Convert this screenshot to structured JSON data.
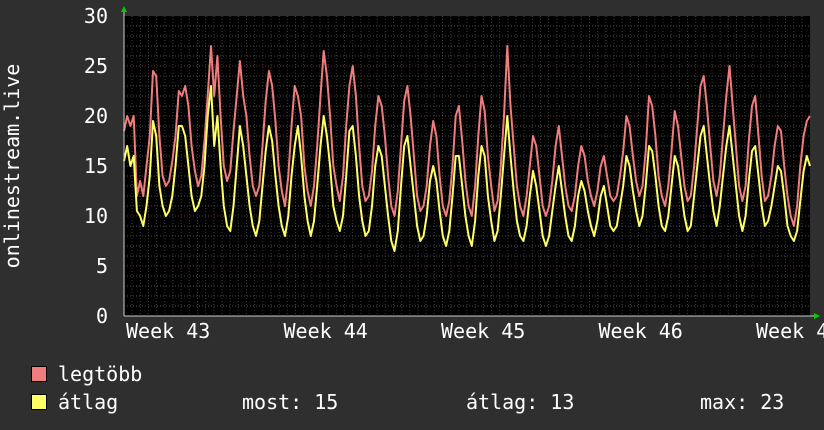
{
  "chart_data": {
    "type": "line",
    "ylabel": "onlinestream.live",
    "ylim": [
      0,
      30
    ],
    "yticks": [
      0,
      5,
      10,
      15,
      20,
      25,
      30
    ],
    "x_tick_labels": [
      "Week 43",
      "Week 44",
      "Week 45",
      "Week 46",
      "Week 4"
    ],
    "grid": true,
    "series": [
      {
        "name": "legtöbb",
        "color": "#f07c7c",
        "values": [
          18.5,
          20.0,
          19.0,
          20.0,
          12.0,
          13.5,
          12.0,
          15.0,
          18.0,
          24.5,
          24.0,
          18.0,
          14.0,
          13.0,
          13.5,
          15.5,
          18.0,
          22.5,
          22.0,
          23.0,
          21.0,
          17.0,
          14.5,
          13.0,
          14.0,
          17.5,
          22.0,
          27.0,
          22.0,
          26.0,
          20.0,
          15.0,
          13.5,
          14.5,
          18.5,
          22.0,
          25.5,
          22.0,
          20.0,
          16.0,
          13.0,
          12.0,
          13.0,
          17.0,
          21.5,
          24.5,
          23.0,
          19.5,
          15.0,
          12.5,
          11.0,
          14.0,
          19.0,
          23.0,
          22.0,
          20.0,
          15.0,
          12.5,
          11.0,
          13.0,
          17.0,
          22.0,
          26.5,
          24.0,
          20.0,
          15.0,
          13.0,
          11.5,
          14.0,
          19.0,
          23.0,
          25.0,
          22.0,
          17.0,
          13.0,
          11.5,
          12.0,
          14.5,
          19.0,
          22.0,
          21.0,
          18.0,
          14.0,
          11.0,
          10.0,
          12.5,
          17.0,
          21.5,
          23.0,
          20.0,
          16.0,
          12.0,
          10.5,
          11.0,
          13.0,
          17.0,
          19.5,
          18.0,
          14.0,
          11.0,
          10.0,
          11.5,
          15.0,
          20.0,
          21.0,
          17.5,
          13.5,
          11.0,
          10.0,
          13.0,
          18.0,
          22.0,
          20.5,
          16.0,
          13.0,
          10.5,
          11.5,
          15.0,
          20.0,
          27.0,
          21.0,
          17.0,
          13.0,
          11.0,
          10.0,
          12.0,
          15.0,
          18.0,
          17.0,
          14.0,
          11.0,
          10.0,
          11.0,
          13.5,
          17.0,
          19.0,
          16.0,
          13.0,
          11.0,
          10.5,
          12.0,
          15.0,
          17.0,
          16.0,
          13.5,
          12.0,
          11.0,
          12.5,
          15.0,
          16.0,
          14.0,
          12.0,
          11.5,
          12.0,
          14.0,
          16.5,
          20.0,
          19.0,
          16.0,
          13.5,
          12.0,
          13.0,
          16.5,
          22.0,
          21.0,
          18.0,
          14.0,
          12.0,
          11.0,
          13.0,
          16.5,
          20.5,
          19.0,
          16.0,
          13.0,
          11.5,
          12.0,
          15.0,
          19.0,
          23.0,
          24.0,
          21.0,
          17.0,
          13.5,
          12.0,
          14.0,
          18.0,
          22.0,
          25.0,
          21.0,
          17.0,
          13.0,
          11.5,
          13.0,
          17.5,
          21.0,
          22.0,
          18.0,
          14.0,
          11.5,
          12.0,
          14.0,
          17.0,
          19.0,
          18.5,
          15.0,
          12.0,
          10.0,
          9.0,
          11.0,
          15.0,
          18.0,
          19.5,
          20.0
        ]
      },
      {
        "name": "átlag",
        "color": "#ffff66",
        "values": [
          15.5,
          17.0,
          15.0,
          16.0,
          10.5,
          10.0,
          9.0,
          11.0,
          14.0,
          19.5,
          18.0,
          13.0,
          11.0,
          10.0,
          10.5,
          12.0,
          15.0,
          19.0,
          19.0,
          18.0,
          15.0,
          12.0,
          10.5,
          11.0,
          12.0,
          15.0,
          20.0,
          23.0,
          17.0,
          20.0,
          15.0,
          11.0,
          9.0,
          8.5,
          11.0,
          15.0,
          19.0,
          17.0,
          14.0,
          11.0,
          9.0,
          8.0,
          9.5,
          13.0,
          16.5,
          19.0,
          17.5,
          14.0,
          11.0,
          9.0,
          8.0,
          10.0,
          14.0,
          17.0,
          19.0,
          16.0,
          12.0,
          9.5,
          8.0,
          9.5,
          13.0,
          17.0,
          20.0,
          18.0,
          15.0,
          11.0,
          9.5,
          8.5,
          10.0,
          14.0,
          18.5,
          19.0,
          16.0,
          12.0,
          9.5,
          8.0,
          8.5,
          11.0,
          15.0,
          17.0,
          16.0,
          13.0,
          10.0,
          7.5,
          6.5,
          8.5,
          13.0,
          17.0,
          18.0,
          15.0,
          12.0,
          9.0,
          7.5,
          8.0,
          10.0,
          13.5,
          15.0,
          13.5,
          10.5,
          8.0,
          7.0,
          8.5,
          12.0,
          16.0,
          16.0,
          13.0,
          10.0,
          8.0,
          7.0,
          9.5,
          14.0,
          17.0,
          16.0,
          12.0,
          9.5,
          7.5,
          8.5,
          12.0,
          16.0,
          20.0,
          16.0,
          12.5,
          9.5,
          8.0,
          7.5,
          9.0,
          12.0,
          14.5,
          13.0,
          10.5,
          8.0,
          7.0,
          8.0,
          10.5,
          13.0,
          15.0,
          12.5,
          10.0,
          8.0,
          7.5,
          9.0,
          12.0,
          13.5,
          12.5,
          10.5,
          9.0,
          8.0,
          9.5,
          12.0,
          13.0,
          11.0,
          9.0,
          8.5,
          9.0,
          11.0,
          13.0,
          16.0,
          15.0,
          12.5,
          10.5,
          9.0,
          10.0,
          13.0,
          17.0,
          16.5,
          14.0,
          11.0,
          9.0,
          8.5,
          10.0,
          13.0,
          16.0,
          15.0,
          12.5,
          10.0,
          8.5,
          9.0,
          12.0,
          15.0,
          18.0,
          19.0,
          16.0,
          13.0,
          10.5,
          9.0,
          11.0,
          14.0,
          17.0,
          19.0,
          16.0,
          13.0,
          10.0,
          8.5,
          10.0,
          13.5,
          16.5,
          17.0,
          14.0,
          11.0,
          9.0,
          9.5,
          11.0,
          13.0,
          15.0,
          14.5,
          12.0,
          9.0,
          8.0,
          7.5,
          8.5,
          11.5,
          14.5,
          16.0,
          15.0
        ]
      }
    ]
  },
  "legend": {
    "max_label": "legtöbb",
    "avg_label": "átlag"
  },
  "stats": {
    "now": "most: 15",
    "avg": "átlag: 13",
    "max": "max: 23"
  }
}
